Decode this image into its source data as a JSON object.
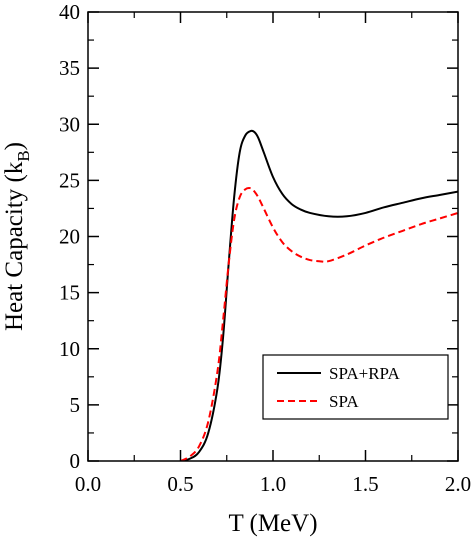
{
  "chart_data": {
    "type": "line",
    "title": "",
    "xlabel": "T  (MeV)",
    "ylabel_main": "Heat Capacity (k",
    "ylabel_sub": "B",
    "ylabel_close": ")",
    "xlim": [
      0.0,
      2.0
    ],
    "ylim": [
      0,
      40
    ],
    "xticks": [
      0.0,
      0.5,
      1.0,
      1.5,
      2.0
    ],
    "xtick_labels": [
      "0.0",
      "0.5",
      "1.0",
      "1.5",
      "2.0"
    ],
    "yticks": [
      0,
      5,
      10,
      15,
      20,
      25,
      30,
      35,
      40
    ],
    "ytick_labels": [
      "0",
      "5",
      "10",
      "15",
      "20",
      "25",
      "30",
      "35",
      "40"
    ],
    "grid": false,
    "legend_position": "bottom-right",
    "series": [
      {
        "name": "SPA+RPA",
        "color": "#000000",
        "dash": "solid",
        "x": [
          0.5,
          0.55,
          0.6,
          0.65,
          0.7,
          0.73,
          0.76,
          0.79,
          0.82,
          0.85,
          0.88,
          0.9,
          0.92,
          0.95,
          1.0,
          1.05,
          1.1,
          1.15,
          1.2,
          1.3,
          1.4,
          1.5,
          1.6,
          1.7,
          1.8,
          1.9,
          2.0
        ],
        "y": [
          0.0,
          0.2,
          0.8,
          2.5,
          6.5,
          11.0,
          17.5,
          23.5,
          27.5,
          29.0,
          29.4,
          29.3,
          28.8,
          27.5,
          25.3,
          23.8,
          22.9,
          22.4,
          22.1,
          21.8,
          21.8,
          22.1,
          22.6,
          23.0,
          23.4,
          23.7,
          24.0
        ]
      },
      {
        "name": "SPA",
        "color": "#ff0000",
        "dash": "dashed",
        "x": [
          0.5,
          0.55,
          0.6,
          0.65,
          0.7,
          0.73,
          0.76,
          0.79,
          0.82,
          0.85,
          0.88,
          0.9,
          0.92,
          0.95,
          1.0,
          1.05,
          1.1,
          1.15,
          1.2,
          1.25,
          1.3,
          1.4,
          1.5,
          1.6,
          1.7,
          1.8,
          1.9,
          2.0
        ],
        "y": [
          0.0,
          0.4,
          1.3,
          3.5,
          8.0,
          12.5,
          17.5,
          21.5,
          23.5,
          24.2,
          24.3,
          24.0,
          23.5,
          22.5,
          20.8,
          19.5,
          18.7,
          18.2,
          17.9,
          17.8,
          17.8,
          18.4,
          19.2,
          19.9,
          20.5,
          21.1,
          21.6,
          22.1
        ]
      }
    ]
  }
}
